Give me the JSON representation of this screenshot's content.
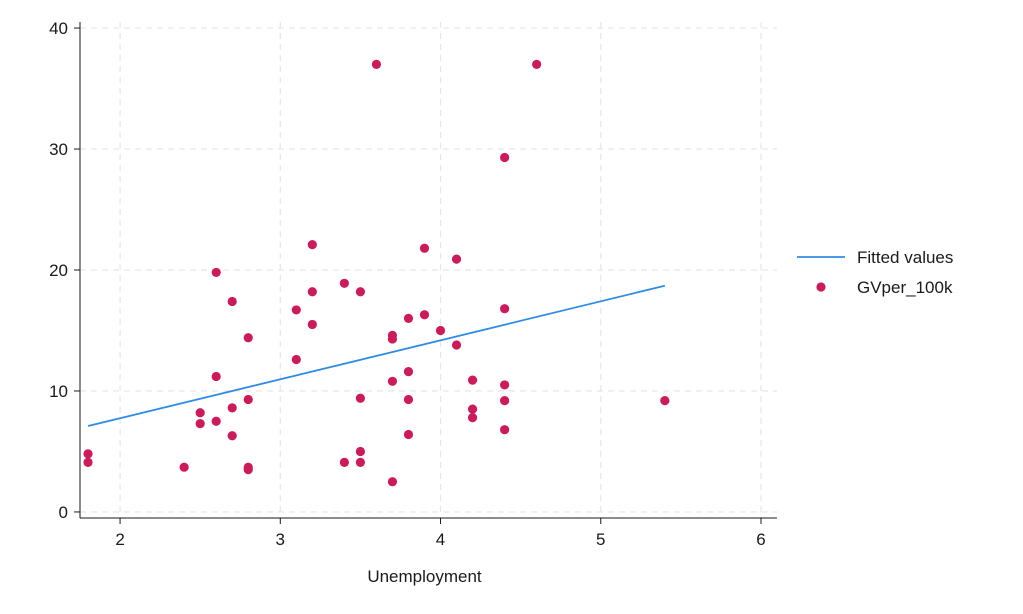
{
  "chart_data": {
    "type": "scatter",
    "xlabel": "Unemployment",
    "ylabel": "",
    "xlim": [
      1.75,
      6.1
    ],
    "ylim": [
      -0.5,
      40.5
    ],
    "xticks": [
      2,
      3,
      4,
      5,
      6
    ],
    "yticks": [
      0,
      10,
      20,
      30,
      40
    ],
    "grid": true,
    "legend_position": "right",
    "colors": {
      "fitted": "#2f8ce6",
      "points": "#cc1a5a",
      "grid": "#e6e6e6",
      "axis": "#1a1a1a"
    },
    "series": [
      {
        "name": "Fitted values",
        "kind": "line",
        "x": [
          1.8,
          5.4
        ],
        "y": [
          7.1,
          18.7
        ]
      },
      {
        "name": "GVper_100k",
        "kind": "scatter",
        "x": [
          1.8,
          1.8,
          2.4,
          2.5,
          2.5,
          2.6,
          2.6,
          2.6,
          2.7,
          2.7,
          2.7,
          2.8,
          2.8,
          2.8,
          2.8,
          3.1,
          3.1,
          3.2,
          3.2,
          3.2,
          3.4,
          3.4,
          3.5,
          3.5,
          3.5,
          3.5,
          3.6,
          3.7,
          3.7,
          3.7,
          3.7,
          3.8,
          3.8,
          3.8,
          3.8,
          3.9,
          3.9,
          4.0,
          4.1,
          4.1,
          4.2,
          4.2,
          4.2,
          4.4,
          4.4,
          4.4,
          4.4,
          4.4,
          4.6,
          5.4
        ],
        "y": [
          4.8,
          4.1,
          3.7,
          8.2,
          7.3,
          19.8,
          11.2,
          7.5,
          17.4,
          8.6,
          6.3,
          14.4,
          9.3,
          3.7,
          3.5,
          16.7,
          12.6,
          22.1,
          18.2,
          15.5,
          18.9,
          4.1,
          18.2,
          9.4,
          5.0,
          4.1,
          37.0,
          14.6,
          14.3,
          10.8,
          2.5,
          16.0,
          11.6,
          9.3,
          6.4,
          21.8,
          16.3,
          15.0,
          20.9,
          13.8,
          10.9,
          8.5,
          7.8,
          29.3,
          16.8,
          10.5,
          9.2,
          6.8,
          37.0,
          9.2
        ]
      }
    ]
  }
}
